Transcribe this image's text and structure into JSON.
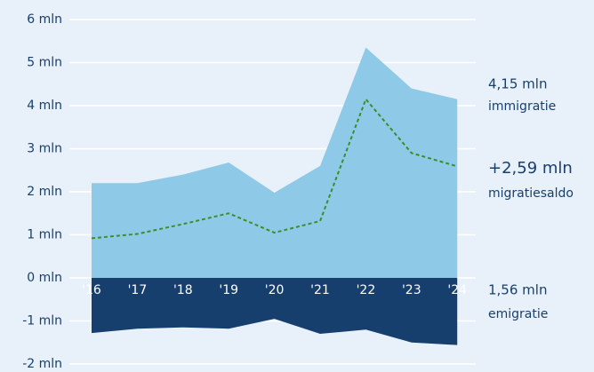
{
  "chart_data": {
    "type": "area",
    "categories": [
      "'16",
      "'17",
      "'18",
      "'19",
      "'20",
      "'21",
      "'22",
      "'23",
      "'24"
    ],
    "series": [
      {
        "name": "immigratie",
        "end_label": "4,15 mln",
        "color": "#8ecae8",
        "style": "area",
        "values": [
          2.2,
          2.2,
          2.4,
          2.68,
          1.98,
          2.6,
          5.35,
          4.4,
          4.15
        ]
      },
      {
        "name": "emigratie",
        "end_label": "1,56 mln",
        "color": "#173f6e",
        "style": "area",
        "values": [
          -1.28,
          -1.18,
          -1.15,
          -1.18,
          -0.95,
          -1.3,
          -1.2,
          -1.5,
          -1.56
        ]
      },
      {
        "name": "migratiesaldo",
        "end_label": "+2,59 mln",
        "color": "#3a8f2c",
        "style": "dashed-line",
        "values": [
          0.92,
          1.02,
          1.25,
          1.5,
          1.05,
          1.32,
          4.15,
          2.9,
          2.59
        ]
      }
    ],
    "ylim": [
      -2,
      6
    ],
    "yticks": [
      {
        "value": -2,
        "label": "-2 mln"
      },
      {
        "value": -1,
        "label": "-1 mln"
      },
      {
        "value": 0,
        "label": "0 mln"
      },
      {
        "value": 1,
        "label": "1 mln"
      },
      {
        "value": 2,
        "label": "2 mln"
      },
      {
        "value": 3,
        "label": "3 mln"
      },
      {
        "value": 4,
        "label": "4 mln"
      },
      {
        "value": 5,
        "label": "5 mln"
      },
      {
        "value": 6,
        "label": "6 mln"
      }
    ],
    "grid": true
  }
}
